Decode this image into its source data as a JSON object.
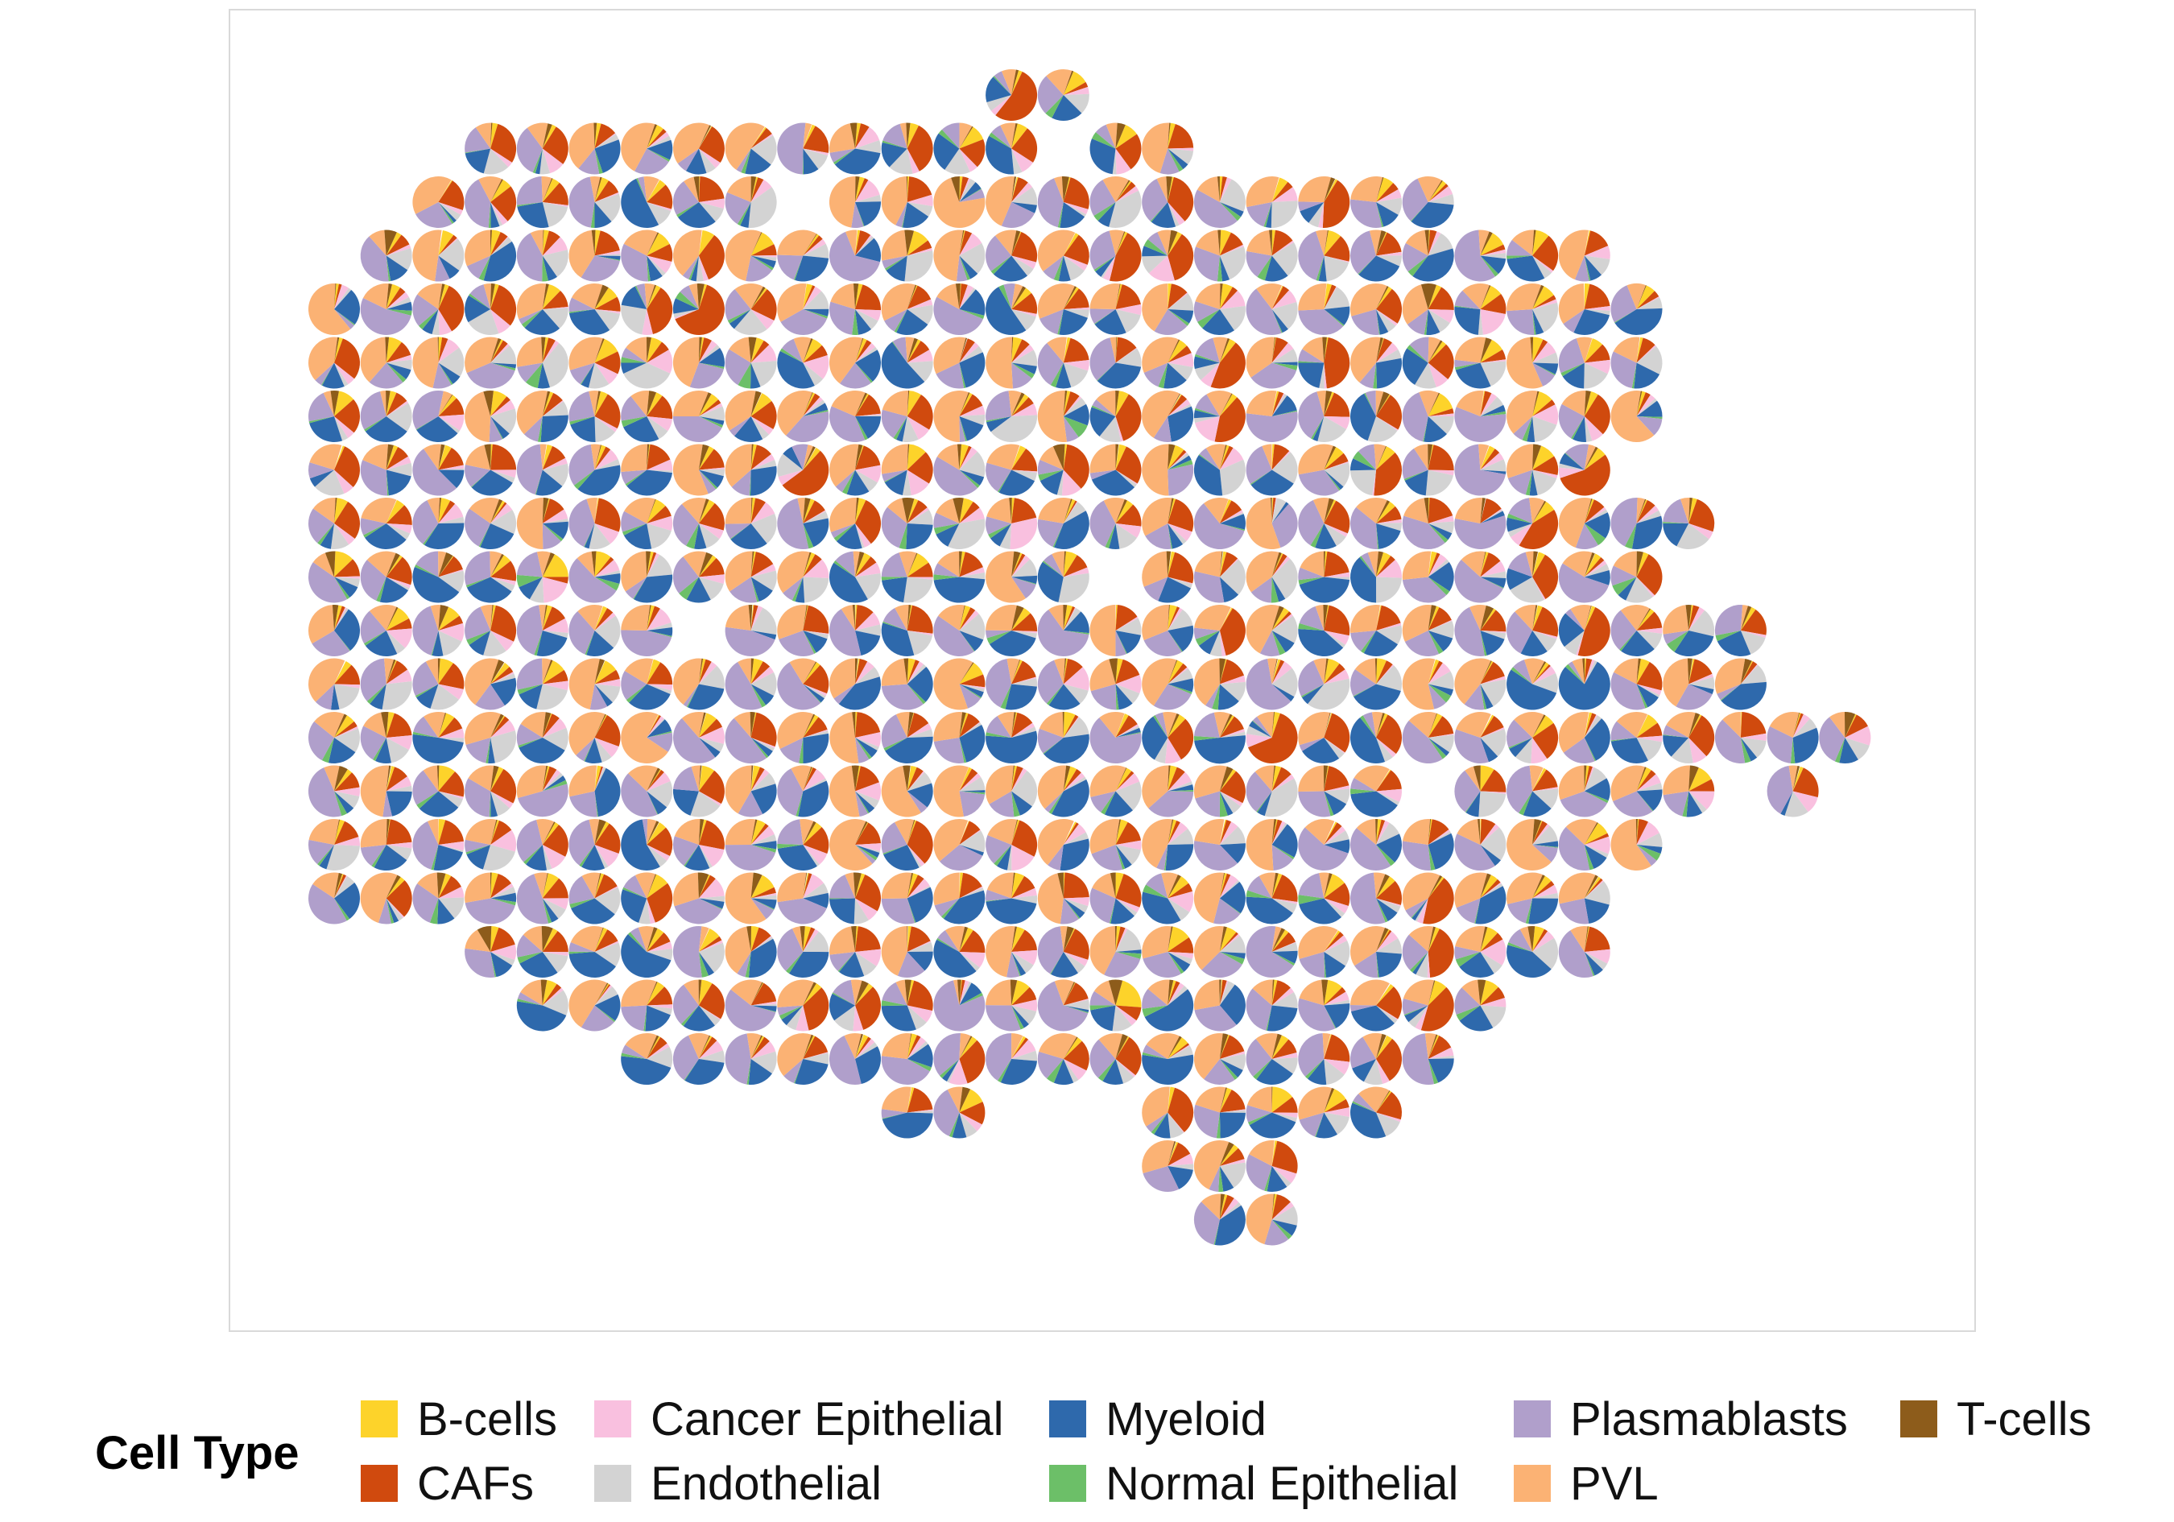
{
  "chart_data": {
    "type": "scatter",
    "subtype": "spatial-pie",
    "title": "",
    "xlabel": "",
    "ylabel": "",
    "grid": false,
    "axis_ticks": false,
    "panel_border": true,
    "legend": {
      "title": "Cell Type",
      "position": "bottom"
    },
    "cell_types": [
      {
        "name": "B-cells",
        "color": "#FDD32A"
      },
      {
        "name": "CAFs",
        "color": "#D04A0E"
      },
      {
        "name": "Cancer Epithelial",
        "color": "#F9C0DF"
      },
      {
        "name": "Endothelial",
        "color": "#D3D3D3"
      },
      {
        "name": "Myeloid",
        "color": "#2E69AC"
      },
      {
        "name": "Normal Epithelial",
        "color": "#6CBF68"
      },
      {
        "name": "Plasmablasts",
        "color": "#B09FCB"
      },
      {
        "name": "PVL",
        "color": "#FBB274"
      },
      {
        "name": "T-cells",
        "color": "#8D5C1B"
      }
    ],
    "spot_grid": {
      "rows": [
        {
          "y": 1,
          "cols": [
            14,
            15
          ]
        },
        {
          "y": 2,
          "cols": [
            4,
            5,
            6,
            7,
            8,
            9,
            10,
            11,
            12,
            13,
            14,
            16,
            17
          ]
        },
        {
          "y": 3,
          "cols": [
            3,
            4,
            5,
            6,
            7,
            8,
            9,
            11,
            12,
            13,
            14,
            15,
            16,
            17,
            18,
            19,
            20,
            21,
            22
          ]
        },
        {
          "y": 4,
          "cols": [
            2,
            3,
            4,
            5,
            6,
            7,
            8,
            9,
            10,
            11,
            12,
            13,
            14,
            15,
            16,
            17,
            18,
            19,
            20,
            21,
            22,
            23,
            24,
            25
          ]
        },
        {
          "y": 5,
          "cols": [
            1,
            2,
            3,
            4,
            5,
            6,
            7,
            8,
            9,
            10,
            11,
            12,
            13,
            14,
            15,
            16,
            17,
            18,
            19,
            20,
            21,
            22,
            23,
            24,
            25,
            26
          ]
        },
        {
          "y": 6,
          "cols": [
            1,
            2,
            3,
            4,
            5,
            6,
            7,
            8,
            9,
            10,
            11,
            12,
            13,
            14,
            15,
            16,
            17,
            18,
            19,
            20,
            21,
            22,
            23,
            24,
            25,
            26
          ]
        },
        {
          "y": 7,
          "cols": [
            1,
            2,
            3,
            4,
            5,
            6,
            7,
            8,
            9,
            10,
            11,
            12,
            13,
            14,
            15,
            16,
            17,
            18,
            19,
            20,
            21,
            22,
            23,
            24,
            25,
            26
          ]
        },
        {
          "y": 8,
          "cols": [
            1,
            2,
            3,
            4,
            5,
            6,
            7,
            8,
            9,
            10,
            11,
            12,
            13,
            14,
            15,
            16,
            17,
            18,
            19,
            20,
            21,
            22,
            23,
            24,
            25
          ]
        },
        {
          "y": 9,
          "cols": [
            1,
            2,
            3,
            4,
            5,
            6,
            7,
            8,
            9,
            10,
            11,
            12,
            13,
            14,
            15,
            16,
            17,
            18,
            19,
            20,
            21,
            22,
            23,
            24,
            25,
            26,
            27
          ]
        },
        {
          "y": 10,
          "cols": [
            1,
            2,
            3,
            4,
            5,
            6,
            7,
            8,
            9,
            10,
            11,
            12,
            13,
            14,
            15,
            17,
            18,
            19,
            20,
            21,
            22,
            23,
            24,
            25,
            26
          ]
        },
        {
          "y": 11,
          "cols": [
            1,
            2,
            3,
            4,
            5,
            6,
            7,
            9,
            10,
            11,
            12,
            13,
            14,
            15,
            16,
            17,
            18,
            19,
            20,
            21,
            22,
            23,
            24,
            25,
            26,
            27,
            28
          ]
        },
        {
          "y": 12,
          "cols": [
            1,
            2,
            3,
            4,
            5,
            6,
            7,
            8,
            9,
            10,
            11,
            12,
            13,
            14,
            15,
            16,
            17,
            18,
            19,
            20,
            21,
            22,
            23,
            24,
            25,
            26,
            27,
            28
          ]
        },
        {
          "y": 13,
          "cols": [
            1,
            2,
            3,
            4,
            5,
            6,
            7,
            8,
            9,
            10,
            11,
            12,
            13,
            14,
            15,
            16,
            17,
            18,
            19,
            20,
            21,
            22,
            23,
            24,
            25,
            26,
            27,
            28,
            29,
            30
          ]
        },
        {
          "y": 14,
          "cols": [
            1,
            2,
            3,
            4,
            5,
            6,
            7,
            8,
            9,
            10,
            11,
            12,
            13,
            14,
            15,
            16,
            17,
            18,
            19,
            20,
            21,
            23,
            24,
            25,
            26,
            27,
            29
          ]
        },
        {
          "y": 15,
          "cols": [
            1,
            2,
            3,
            4,
            5,
            6,
            7,
            8,
            9,
            10,
            11,
            12,
            13,
            14,
            15,
            16,
            17,
            18,
            19,
            20,
            21,
            22,
            23,
            24,
            25,
            26
          ]
        },
        {
          "y": 16,
          "cols": [
            1,
            2,
            3,
            4,
            5,
            6,
            7,
            8,
            9,
            10,
            11,
            12,
            13,
            14,
            15,
            16,
            17,
            18,
            19,
            20,
            21,
            22,
            23,
            24,
            25
          ]
        },
        {
          "y": 17,
          "cols": [
            4,
            5,
            6,
            7,
            8,
            9,
            10,
            11,
            12,
            13,
            14,
            15,
            16,
            17,
            18,
            19,
            20,
            21,
            22,
            23,
            24,
            25
          ]
        },
        {
          "y": 18,
          "cols": [
            5,
            6,
            7,
            8,
            9,
            10,
            11,
            12,
            13,
            14,
            15,
            16,
            17,
            18,
            19,
            20,
            21,
            22,
            23
          ]
        },
        {
          "y": 19,
          "cols": [
            7,
            8,
            9,
            10,
            11,
            12,
            13,
            14,
            15,
            16,
            17,
            18,
            19,
            20,
            21,
            22
          ]
        },
        {
          "y": 20,
          "cols": [
            12,
            13,
            17,
            18,
            19,
            20,
            21
          ]
        },
        {
          "y": 21,
          "cols": [
            17,
            18,
            19
          ]
        },
        {
          "y": 22,
          "cols": [
            18,
            19
          ]
        }
      ]
    }
  }
}
